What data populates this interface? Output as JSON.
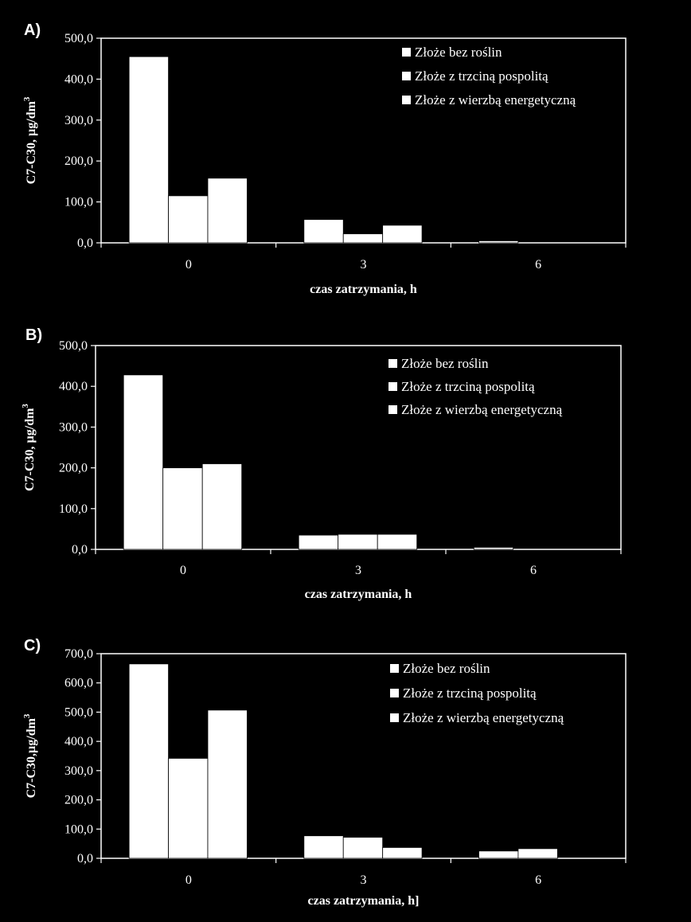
{
  "chart_data": [
    {
      "panel_label": "A)",
      "type": "bar",
      "categories": [
        "0",
        "3",
        "6"
      ],
      "series": [
        {
          "name": "Złoże bez roślin",
          "values": [
            455.0,
            57.0,
            5.0
          ]
        },
        {
          "name": "Złoże z trzciną pospolitą",
          "values": [
            115.0,
            22.0,
            0.0
          ]
        },
        {
          "name": "Złoże z wierzbą energetyczną",
          "values": [
            158.0,
            43.0,
            0.0
          ]
        }
      ],
      "ylabel": "C7-C30, µg/dm",
      "ylabel_sup": "3",
      "xlabel": "czas zatrzymania,  h",
      "ylim": [
        0,
        500
      ],
      "yticks": [
        "0,0",
        "100,0",
        "200,0",
        "300,0",
        "400,0",
        "500,0"
      ],
      "legend": "top-right",
      "grid": false
    },
    {
      "panel_label": "B)",
      "type": "bar",
      "categories": [
        "0",
        "3",
        "6"
      ],
      "series": [
        {
          "name": "Złoże bez roślin",
          "values": [
            428.0,
            35.0,
            5.0
          ]
        },
        {
          "name": "Złoże z trzciną pospolitą",
          "values": [
            200.0,
            37.0,
            0.0
          ]
        },
        {
          "name": "Złoże z wierzbą energetyczną",
          "values": [
            210.0,
            37.0,
            0.0
          ]
        }
      ],
      "ylabel": "C7-C30, µg/dm",
      "ylabel_sup": "3",
      "xlabel": "czas zatrzymania,  h",
      "ylim": [
        0,
        500
      ],
      "yticks": [
        "0,0",
        "100,0",
        "200,0",
        "300,0",
        "400,0",
        "500,0"
      ],
      "legend": "top-right",
      "grid": false
    },
    {
      "panel_label": "C)",
      "type": "bar",
      "categories": [
        "0",
        "3",
        "6"
      ],
      "series": [
        {
          "name": "Złoże bez roślin",
          "values": [
            665.0,
            77.0,
            25.0
          ]
        },
        {
          "name": "Złoże z trzciną pospolitą",
          "values": [
            342.0,
            72.0,
            33.0
          ]
        },
        {
          "name": "Złoże z wierzbą energetyczną",
          "values": [
            507.0,
            37.0,
            0.0
          ]
        }
      ],
      "ylabel": "C7-C30,µg/dm",
      "ylabel_sup": "3",
      "xlabel": "czas zatrzymania,  h]",
      "ylim": [
        0,
        700
      ],
      "yticks": [
        "0,0",
        "100,0",
        "200,0",
        "300,0",
        "400,0",
        "500,0",
        "600,0",
        "700,0"
      ],
      "legend": "top-right",
      "grid": false
    }
  ]
}
